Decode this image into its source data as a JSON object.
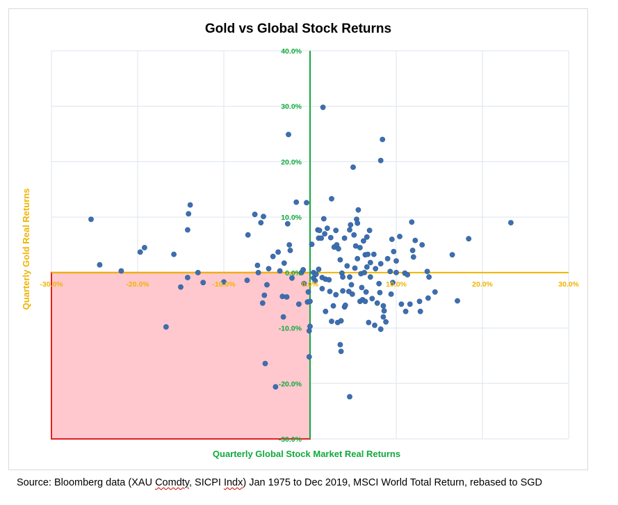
{
  "chart_data": {
    "type": "scatter",
    "title": "Gold vs Global Stock Returns",
    "xlabel": "Quarterly Global Stock Market Real Returns",
    "ylabel": "Quarterly Gold Real Returns",
    "xlim": [
      -0.3,
      0.3
    ],
    "ylim": [
      -0.3,
      0.4
    ],
    "x_tick_labels": [
      "-30.0%",
      "-20.0%",
      "-10.0%",
      "0.0%",
      "10.0%",
      "20.0%",
      "30.0%"
    ],
    "y_tick_labels": [
      "40.0%",
      "30.0%",
      "20.0%",
      "10.0%",
      "0.0%",
      "-10.0%",
      "-20.0%",
      "-30.0%"
    ],
    "x_ticks": [
      -0.3,
      -0.2,
      -0.1,
      0.0,
      0.1,
      0.2,
      0.3
    ],
    "y_ticks": [
      0.4,
      0.3,
      0.2,
      0.1,
      0.0,
      -0.1,
      -0.2,
      -0.3
    ],
    "grid": true,
    "highlight_region": {
      "x": [
        -0.3,
        0.0
      ],
      "y": [
        -0.3,
        0.0
      ],
      "fill": "#ffc7ce",
      "stroke": "#e02020"
    },
    "colors": {
      "points": "#3d6fb0",
      "x_axis": "#f0b400",
      "y_axis": "#10a83c",
      "x_tick_text": "#f0b400",
      "y_tick_text": "#10a83c",
      "title": "#000000"
    },
    "series": [
      {
        "points": [
          [
            -0.254,
            0.096
          ],
          [
            -0.244,
            0.014
          ],
          [
            -0.219,
            0.003
          ],
          [
            -0.197,
            0.037
          ],
          [
            -0.192,
            0.045
          ],
          [
            -0.167,
            -0.098
          ],
          [
            -0.158,
            0.033
          ],
          [
            -0.15,
            -0.026
          ],
          [
            -0.142,
            -0.009
          ],
          [
            -0.142,
            0.077
          ],
          [
            -0.141,
            0.106
          ],
          [
            -0.139,
            0.122
          ],
          [
            -0.13,
            0.0
          ],
          [
            -0.124,
            -0.018
          ],
          [
            -0.1,
            -0.017
          ],
          [
            -0.073,
            -0.014
          ],
          [
            -0.072,
            0.068
          ],
          [
            -0.064,
            0.105
          ],
          [
            -0.061,
            0.013
          ],
          [
            -0.06,
            0.0
          ],
          [
            -0.057,
            0.09
          ],
          [
            -0.055,
            -0.055
          ],
          [
            -0.054,
            0.101
          ],
          [
            -0.053,
            -0.041
          ],
          [
            -0.052,
            -0.164
          ],
          [
            -0.05,
            -0.022
          ],
          [
            -0.048,
            0.007
          ],
          [
            -0.043,
            0.029
          ],
          [
            -0.04,
            -0.206
          ],
          [
            -0.037,
            0.037
          ],
          [
            -0.035,
            0.003
          ],
          [
            -0.032,
            -0.043
          ],
          [
            -0.031,
            -0.08
          ],
          [
            -0.03,
            0.017
          ],
          [
            -0.027,
            -0.044
          ],
          [
            -0.026,
            0.088
          ],
          [
            -0.025,
            0.249
          ],
          [
            -0.024,
            0.05
          ],
          [
            -0.023,
            0.04
          ],
          [
            -0.021,
            -0.01
          ],
          [
            -0.016,
            0.127
          ],
          [
            -0.013,
            -0.057
          ],
          [
            -0.01,
            0.0
          ],
          [
            -0.008,
            0.005
          ],
          [
            -0.007,
            -0.02
          ],
          [
            -0.004,
            0.126
          ],
          [
            -0.003,
            -0.053
          ],
          [
            -0.002,
            -0.035
          ],
          [
            -0.001,
            -0.105
          ],
          [
            -0.001,
            -0.152
          ],
          [
            0.0,
            -0.097
          ],
          [
            0.0,
            -0.052
          ],
          [
            0.002,
            0.051
          ],
          [
            0.004,
            0.0
          ],
          [
            0.004,
            -0.01
          ],
          [
            0.006,
            -0.015
          ],
          [
            0.007,
            -0.003
          ],
          [
            0.009,
            0.077
          ],
          [
            0.01,
            0.062
          ],
          [
            0.01,
            0.006
          ],
          [
            0.011,
            0.076
          ],
          [
            0.013,
            0.062
          ],
          [
            0.014,
            -0.009
          ],
          [
            0.014,
            -0.029
          ],
          [
            0.015,
            0.298
          ],
          [
            0.016,
            0.097
          ],
          [
            0.017,
            0.07
          ],
          [
            0.018,
            -0.07
          ],
          [
            0.018,
            -0.012
          ],
          [
            0.02,
            0.08
          ],
          [
            0.022,
            -0.013
          ],
          [
            0.023,
            -0.034
          ],
          [
            0.024,
            0.063
          ],
          [
            0.025,
            -0.088
          ],
          [
            0.025,
            0.133
          ],
          [
            0.027,
            -0.06
          ],
          [
            0.028,
            0.046
          ],
          [
            0.03,
            0.076
          ],
          [
            0.03,
            -0.04
          ],
          [
            0.031,
            0.05
          ],
          [
            0.032,
            -0.09
          ],
          [
            0.033,
            0.043
          ],
          [
            0.035,
            0.023
          ],
          [
            0.035,
            -0.13
          ],
          [
            0.036,
            -0.142
          ],
          [
            0.036,
            -0.087
          ],
          [
            0.037,
            -0.001
          ],
          [
            0.038,
            -0.008
          ],
          [
            0.038,
            -0.033
          ],
          [
            0.04,
            0.062
          ],
          [
            0.04,
            -0.062
          ],
          [
            0.041,
            -0.059
          ],
          [
            0.043,
            0.012
          ],
          [
            0.045,
            -0.034
          ],
          [
            0.046,
            0.077
          ],
          [
            0.046,
            -0.008
          ],
          [
            0.047,
            0.086
          ],
          [
            0.048,
            -0.022
          ],
          [
            0.049,
            -0.039
          ],
          [
            0.05,
            0.19
          ],
          [
            0.051,
            0.068
          ],
          [
            0.052,
            0.008
          ],
          [
            0.053,
            0.048
          ],
          [
            0.054,
            0.096
          ],
          [
            0.055,
            0.089
          ],
          [
            0.055,
            0.025
          ],
          [
            0.056,
            0.113
          ],
          [
            0.058,
            0.045
          ],
          [
            0.058,
            -0.052
          ],
          [
            0.059,
            -0.002
          ],
          [
            0.06,
            -0.027
          ],
          [
            0.061,
            -0.049
          ],
          [
            0.062,
            0.057
          ],
          [
            0.063,
            0.0
          ],
          [
            0.064,
            0.032
          ],
          [
            0.064,
            -0.052
          ],
          [
            0.065,
            -0.035
          ],
          [
            0.066,
            0.01
          ],
          [
            0.066,
            0.064
          ],
          [
            0.067,
            0.033
          ],
          [
            0.068,
            -0.09
          ],
          [
            0.069,
            0.076
          ],
          [
            0.07,
            0.018
          ],
          [
            0.07,
            -0.008
          ],
          [
            0.072,
            -0.047
          ],
          [
            0.074,
            0.033
          ],
          [
            0.075,
            -0.095
          ],
          [
            0.076,
            0.007
          ],
          [
            0.078,
            -0.055
          ],
          [
            0.08,
            -0.02
          ],
          [
            0.081,
            -0.036
          ],
          [
            0.082,
            -0.102
          ],
          [
            0.082,
            0.016
          ],
          [
            0.084,
            0.24
          ],
          [
            0.085,
            -0.06
          ],
          [
            0.085,
            -0.08
          ],
          [
            0.086,
            -0.069
          ],
          [
            0.088,
            -0.089
          ],
          [
            0.09,
            0.025
          ],
          [
            0.093,
            0.002
          ],
          [
            0.094,
            -0.039
          ],
          [
            0.095,
            0.06
          ],
          [
            0.096,
            -0.018
          ],
          [
            0.097,
            0.038
          ],
          [
            0.1,
            0.0
          ],
          [
            0.1,
            0.021
          ],
          [
            0.104,
            0.065
          ],
          [
            0.106,
            -0.057
          ],
          [
            0.11,
            -0.001
          ],
          [
            0.111,
            -0.07
          ],
          [
            0.113,
            -0.004
          ],
          [
            0.116,
            -0.057
          ],
          [
            0.118,
            0.091
          ],
          [
            0.119,
            0.04
          ],
          [
            0.12,
            0.028
          ],
          [
            0.122,
            0.058
          ],
          [
            0.127,
            -0.052
          ],
          [
            0.128,
            -0.07
          ],
          [
            0.13,
            0.05
          ],
          [
            0.136,
            0.002
          ],
          [
            0.137,
            -0.046
          ],
          [
            0.138,
            -0.008
          ],
          [
            0.145,
            -0.035
          ],
          [
            0.165,
            0.032
          ],
          [
            0.171,
            -0.051
          ],
          [
            0.184,
            0.061
          ],
          [
            0.233,
            0.09
          ],
          [
            0.082,
            0.202
          ],
          [
            0.046,
            -0.224
          ]
        ]
      }
    ]
  },
  "source": {
    "prefix": "Source: Bloomberg data (XAU ",
    "word1": "Comdty",
    "mid": ", SICPI ",
    "word2": "Indx",
    "suffix": ") Jan 1975 to Dec 2019, MSCI World Total Return, rebased to SGD"
  }
}
